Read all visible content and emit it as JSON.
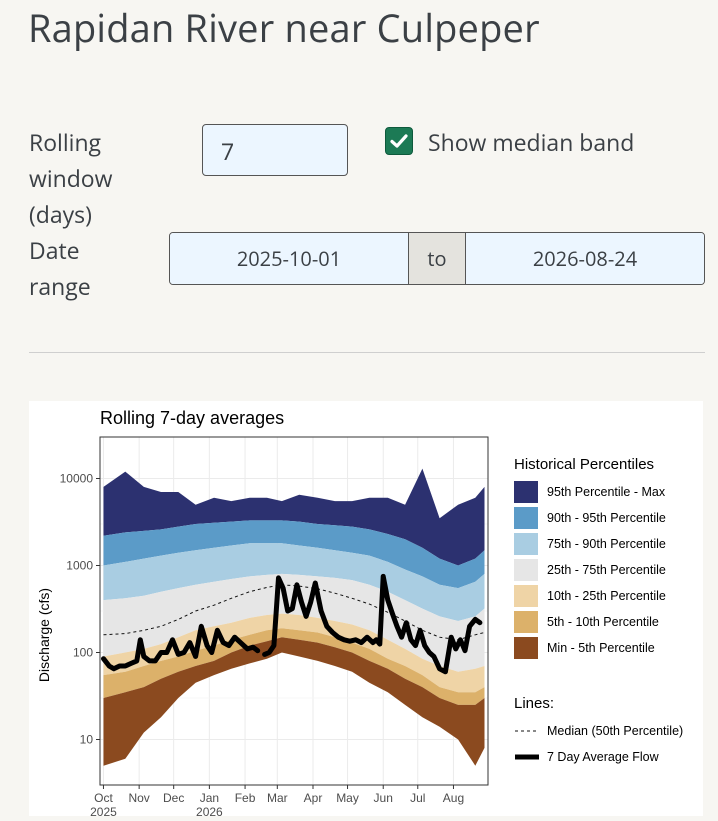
{
  "page": {
    "title": "Rapidan River near Culpeper"
  },
  "controls": {
    "rolling_label": "Rolling window (days)",
    "rolling_label_lines": [
      "Rolling",
      "window",
      "(days)"
    ],
    "rolling_value": "7",
    "median_checkbox_label": "Show median band",
    "median_checked": true,
    "date_label_lines": [
      "Date",
      "range"
    ],
    "date_start": "2025-10-01",
    "date_sep": "to",
    "date_end": "2026-08-24"
  },
  "chart_data": {
    "type": "area",
    "title": "Rolling 7-day averages",
    "ylabel": "Discharge (cfs)",
    "xlabel": "",
    "yscale": "log",
    "ylim": [
      3,
      30000
    ],
    "yticks": [
      "10",
      "100",
      "1000",
      "10000"
    ],
    "xticks": [
      "Oct\n2025",
      "Nov",
      "Dec",
      "Jan\n2026",
      "Feb",
      "Mar",
      "Apr",
      "May",
      "Jun",
      "Jul",
      "Aug"
    ],
    "xtick_dates": [
      "2025-10-01",
      "2025-11-01",
      "2025-12-01",
      "2026-01-01",
      "2026-02-01",
      "2026-03-01",
      "2026-04-01",
      "2026-05-01",
      "2026-06-01",
      "2026-07-01",
      "2026-08-01"
    ],
    "xlim": [
      "2025-09-28",
      "2026-08-31"
    ],
    "grid": true,
    "legend_title": "Historical Percentiles",
    "legend_placement": "right",
    "lines_legend_title": "Lines:",
    "bands": [
      {
        "name": "95th Percentile - Max",
        "color": "#2c3170"
      },
      {
        "name": "90th - 95th Percentile",
        "color": "#5b9bc8"
      },
      {
        "name": "75th - 90th Percentile",
        "color": "#a9cde2"
      },
      {
        "name": "25th - 75th Percentile",
        "color": "#e6e6e6"
      },
      {
        "name": "10th - 25th Percentile",
        "color": "#efd4a6"
      },
      {
        "name": "5th - 10th Percentile",
        "color": "#dcb16a"
      },
      {
        "name": "Min - 5th Percentile",
        "color": "#8b4a1f"
      }
    ],
    "percentile_dates": [
      "2025-10-01",
      "2025-10-20",
      "2025-11-05",
      "2025-11-20",
      "2025-12-05",
      "2025-12-20",
      "2026-01-05",
      "2026-01-20",
      "2026-02-05",
      "2026-02-20",
      "2026-03-05",
      "2026-03-20",
      "2026-04-05",
      "2026-04-20",
      "2026-05-05",
      "2026-05-20",
      "2026-06-05",
      "2026-06-20",
      "2026-07-05",
      "2026-07-20",
      "2026-08-05",
      "2026-08-20",
      "2026-08-28"
    ],
    "percentile_series": {
      "max": [
        8000,
        12000,
        8000,
        7000,
        7000,
        5000,
        6000,
        5500,
        6000,
        6000,
        5500,
        6500,
        6000,
        5500,
        5500,
        6000,
        6000,
        5000,
        13000,
        3500,
        5000,
        6000,
        8000
      ],
      "p95": [
        2200,
        2400,
        2500,
        2600,
        2800,
        3000,
        3100,
        3200,
        3300,
        3300,
        3300,
        3200,
        3000,
        2900,
        2800,
        2600,
        2300,
        2000,
        1600,
        1200,
        1000,
        1200,
        1500
      ],
      "p90": [
        1000,
        1100,
        1200,
        1300,
        1400,
        1500,
        1600,
        1700,
        1800,
        1800,
        1800,
        1700,
        1600,
        1500,
        1400,
        1300,
        1100,
        900,
        750,
        600,
        550,
        650,
        800
      ],
      "p75": [
        400,
        420,
        450,
        500,
        550,
        600,
        650,
        700,
        750,
        780,
        800,
        780,
        750,
        720,
        680,
        600,
        500,
        400,
        320,
        260,
        230,
        260,
        320
      ],
      "p50": [
        160,
        165,
        180,
        200,
        240,
        300,
        350,
        420,
        500,
        560,
        600,
        580,
        540,
        480,
        420,
        360,
        290,
        230,
        180,
        150,
        140,
        160,
        170
      ],
      "p25": [
        90,
        100,
        110,
        125,
        150,
        180,
        200,
        220,
        250,
        270,
        280,
        270,
        250,
        230,
        210,
        180,
        140,
        110,
        85,
        70,
        60,
        65,
        70
      ],
      "p10": [
        55,
        60,
        70,
        80,
        90,
        105,
        120,
        140,
        160,
        180,
        190,
        180,
        170,
        150,
        130,
        110,
        85,
        70,
        55,
        40,
        35,
        35,
        40
      ],
      "p05": [
        30,
        35,
        40,
        50,
        60,
        70,
        80,
        100,
        120,
        135,
        150,
        140,
        130,
        115,
        100,
        80,
        65,
        50,
        40,
        30,
        25,
        25,
        30
      ],
      "min": [
        5,
        6,
        12,
        18,
        30,
        45,
        55,
        65,
        75,
        85,
        100,
        90,
        80,
        70,
        60,
        45,
        35,
        25,
        18,
        14,
        10,
        5,
        8
      ]
    },
    "median_line": {
      "name": "Median (50th Percentile)",
      "style": "dashed"
    },
    "flow_series": {
      "name": "7 Day Average Flow",
      "x": [
        "2025-10-01",
        "2025-10-06",
        "2025-10-10",
        "2025-10-15",
        "2025-10-20",
        "2025-10-25",
        "2025-10-30",
        "2025-11-02",
        "2025-11-05",
        "2025-11-10",
        "2025-11-15",
        "2025-11-20",
        "2025-11-25",
        "2025-11-30",
        "2025-12-05",
        "2025-12-10",
        "2025-12-15",
        "2025-12-20",
        "2025-12-25",
        "2025-12-30",
        "2026-01-03",
        "2026-01-08",
        "2026-01-13",
        "2026-01-18",
        "2026-01-23",
        "2026-01-28",
        "2026-02-03",
        "2026-02-08",
        "2026-02-12",
        "2026-02-15",
        "2026-02-18",
        "2026-02-22",
        "2026-02-26",
        "2026-03-02",
        "2026-03-06",
        "2026-03-10",
        "2026-03-14",
        "2026-03-18",
        "2026-03-22",
        "2026-03-26",
        "2026-03-30",
        "2026-04-03",
        "2026-04-08",
        "2026-04-13",
        "2026-04-18",
        "2026-04-23",
        "2026-04-28",
        "2026-05-03",
        "2026-05-08",
        "2026-05-13",
        "2026-05-18",
        "2026-05-23",
        "2026-05-26",
        "2026-05-29",
        "2026-06-01",
        "2026-06-05",
        "2026-06-09",
        "2026-06-13",
        "2026-06-17",
        "2026-06-21",
        "2026-06-25",
        "2026-06-29",
        "2026-07-03",
        "2026-07-07",
        "2026-07-11",
        "2026-07-15",
        "2026-07-20",
        "2026-07-25",
        "2026-07-30",
        "2026-08-03",
        "2026-08-07",
        "2026-08-11",
        "2026-08-15",
        "2026-08-20",
        "2026-08-24"
      ],
      "y": [
        85,
        70,
        65,
        70,
        70,
        75,
        80,
        140,
        90,
        80,
        80,
        100,
        100,
        140,
        95,
        100,
        130,
        90,
        200,
        120,
        100,
        180,
        130,
        120,
        150,
        130,
        110,
        115,
        105,
        null,
        95,
        100,
        120,
        720,
        550,
        300,
        320,
        600,
        380,
        260,
        380,
        630,
        300,
        200,
        170,
        150,
        140,
        135,
        140,
        130,
        150,
        130,
        140,
        125,
        750,
        400,
        280,
        200,
        150,
        220,
        140,
        120,
        180,
        120,
        100,
        90,
        65,
        60,
        150,
        110,
        140,
        105,
        200,
        240,
        220
      ]
    }
  }
}
